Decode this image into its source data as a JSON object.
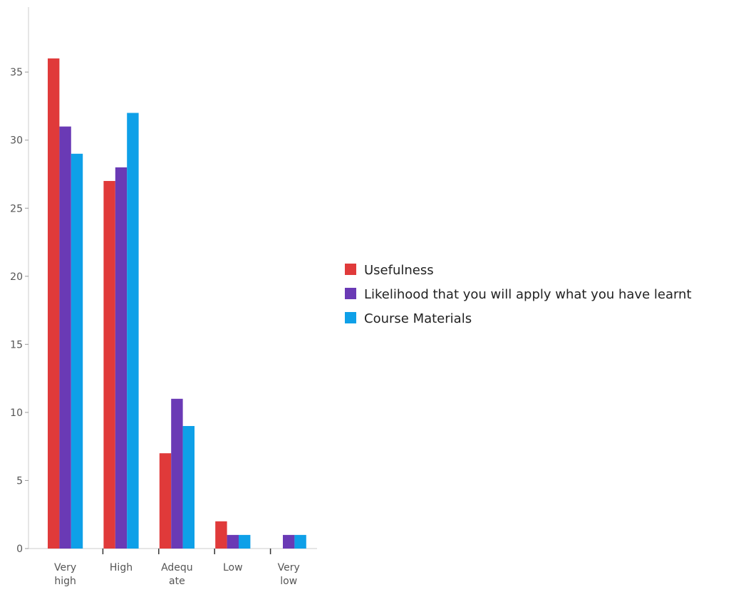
{
  "chart_data": {
    "type": "bar",
    "title": "",
    "xlabel": "",
    "ylabel": "",
    "categories": [
      [
        "Very",
        "high"
      ],
      [
        "High"
      ],
      [
        "Adequ",
        "ate"
      ],
      [
        "Low"
      ],
      [
        "Very",
        "low"
      ]
    ],
    "series": [
      {
        "name": "Usefulness",
        "color": "#e03a3a",
        "values": [
          36,
          27,
          7,
          2,
          0
        ]
      },
      {
        "name": "Likelihood that you will apply what you have learnt",
        "color": "#6a3ab5",
        "values": [
          31,
          28,
          11,
          1,
          1
        ]
      },
      {
        "name": "Course Materials",
        "color": "#0ea0e8",
        "values": [
          29,
          32,
          9,
          1,
          1
        ]
      }
    ],
    "ylim": [
      0,
      40
    ],
    "yticks": [
      0,
      5,
      10,
      15,
      20,
      25,
      30,
      35
    ],
    "grid": false,
    "legend": "right"
  }
}
